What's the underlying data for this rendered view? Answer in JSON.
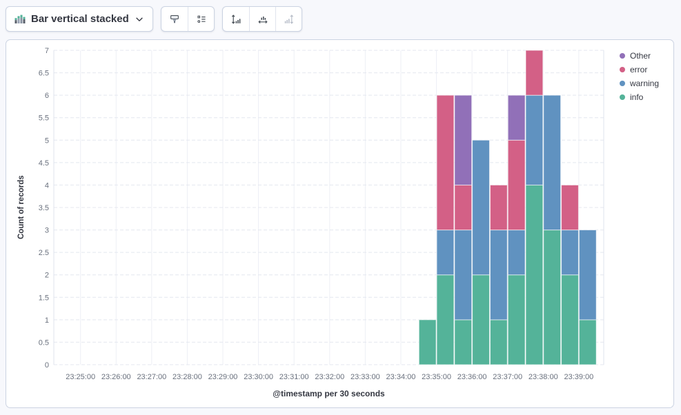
{
  "toolbar": {
    "chart_type_label": "Bar vertical stacked",
    "buttons": {
      "chart_type_dropdown": "Bar vertical stacked",
      "visual_options": "visual-options",
      "legend_settings": "legend-settings",
      "left_axis": "left-axis",
      "bottom_axis": "bottom-axis",
      "right_axis": "right-axis",
      "right_axis_disabled": true
    },
    "icon_colors": {
      "enabled": "#4a5159",
      "disabled": "#b9bfca",
      "chart_icon_green": "#54B399"
    }
  },
  "chart_data": {
    "type": "bar",
    "stacked": true,
    "orientation": "vertical",
    "title": "",
    "xlabel": "@timestamp per 30 seconds",
    "ylabel": "Count of records",
    "ylim": [
      0,
      7
    ],
    "y_ticks": [
      "0",
      "0.5",
      "1",
      "1.5",
      "2",
      "2.5",
      "3",
      "3.5",
      "4",
      "4.5",
      "5",
      "5.5",
      "6",
      "6.5",
      "7"
    ],
    "x_ticks": [
      "23:25:00",
      "23:26:00",
      "23:27:00",
      "23:28:00",
      "23:29:00",
      "23:30:00",
      "23:31:00",
      "23:32:00",
      "23:33:00",
      "23:34:00",
      "23:35:00",
      "23:36:00",
      "23:37:00",
      "23:38:00",
      "23:39:00"
    ],
    "x_domain": [
      "23:24:15",
      "23:39:42"
    ],
    "bucket_seconds": 30,
    "categories": [
      "23:34:30",
      "23:35:00",
      "23:35:30",
      "23:36:00",
      "23:36:30",
      "23:37:00",
      "23:37:30",
      "23:38:00",
      "23:38:30",
      "23:39:00"
    ],
    "series": [
      {
        "name": "info",
        "color": "#54B399",
        "values": [
          1,
          2,
          1,
          2,
          1,
          2,
          4,
          3,
          2,
          1
        ]
      },
      {
        "name": "warning",
        "color": "#6092C0",
        "values": [
          0,
          1,
          2,
          3,
          2,
          1,
          2,
          3,
          1,
          2
        ]
      },
      {
        "name": "error",
        "color": "#D36086",
        "values": [
          0,
          3,
          1,
          0,
          1,
          2,
          1,
          0,
          1,
          0
        ]
      },
      {
        "name": "Other",
        "color": "#9170B8",
        "values": [
          0,
          0,
          2,
          0,
          0,
          1,
          0,
          0,
          0,
          0
        ]
      }
    ],
    "totals": [
      1,
      6,
      6,
      5,
      4,
      6,
      7,
      6,
      4,
      3
    ],
    "legend": {
      "position": "right",
      "items_top_to_bottom": [
        "Other",
        "error",
        "warning",
        "info"
      ]
    },
    "grid": {
      "horizontal": "dashed-every-0.5",
      "vertical": "solid-every-minute"
    }
  }
}
